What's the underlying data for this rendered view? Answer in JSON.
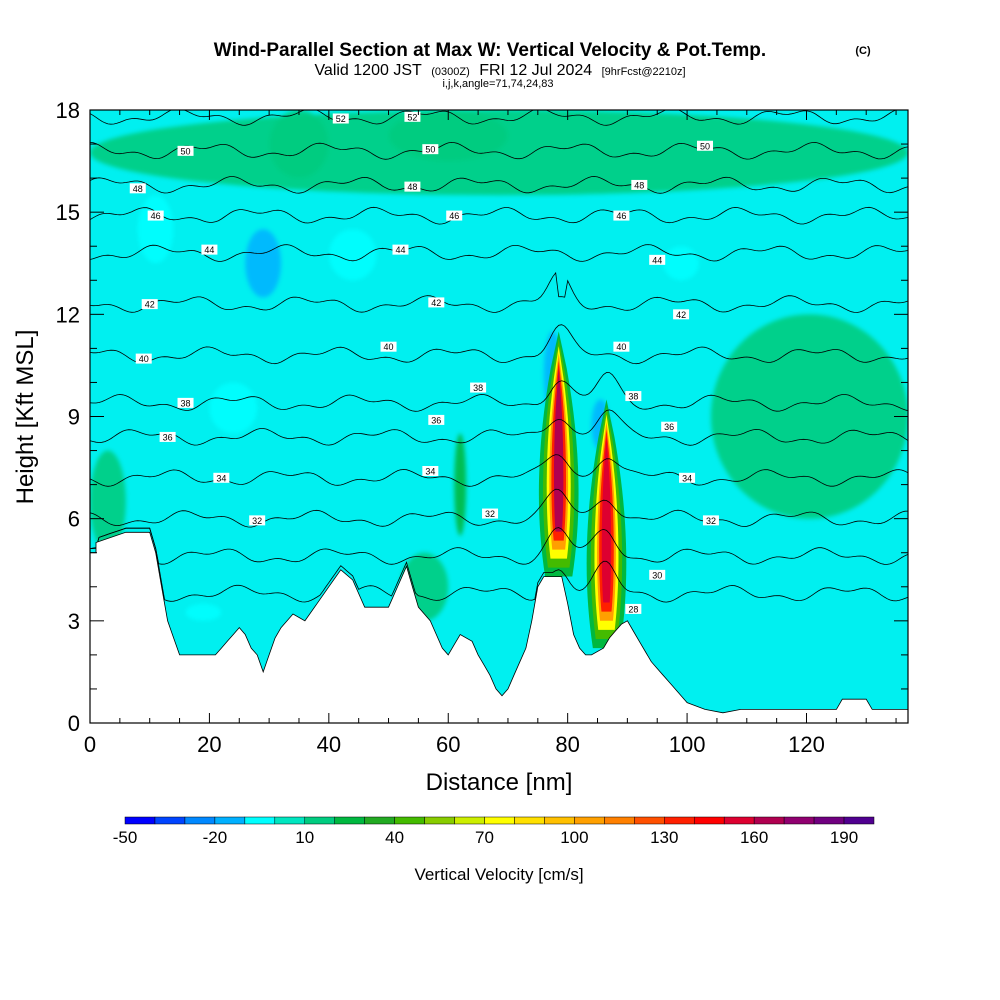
{
  "title": {
    "main": "Wind-Parallel Section at Max W: Vertical Velocity & Pot.Temp.",
    "tag": "(C)",
    "valid_prefix": "Valid 1200 JST",
    "valid_utc": "(0300Z)",
    "valid_date": "FRI 12 Jul 2024",
    "forecast": "[9hrFcst@2210z]",
    "ijk": "i,j,k,angle=71,74,24,83"
  },
  "chart_data": {
    "type": "heatmap",
    "xlabel": "Distance [nm]",
    "ylabel": "Height [Kft MSL]",
    "xlim": [
      0,
      137
    ],
    "ylim": [
      0,
      18
    ],
    "x_ticks": [
      0,
      20,
      40,
      60,
      80,
      100,
      120
    ],
    "y_ticks": [
      0,
      3,
      6,
      9,
      12,
      15,
      18
    ],
    "colorbar": {
      "title": "Vertical Velocity [cm/s]",
      "tick_labels": [
        "-50",
        "-20",
        "10",
        "40",
        "70",
        "100",
        "130",
        "160",
        "190"
      ],
      "levels": [
        -50,
        -40,
        -30,
        -20,
        -10,
        0,
        10,
        20,
        30,
        40,
        50,
        60,
        70,
        80,
        90,
        100,
        110,
        120,
        130,
        140,
        150,
        160,
        170,
        180,
        190,
        200
      ],
      "colors": [
        "#0000ff",
        "#0044ff",
        "#0088ff",
        "#00b0ff",
        "#00ffff",
        "#00e6c0",
        "#00cc80",
        "#00b840",
        "#22aa22",
        "#44bb00",
        "#88cc00",
        "#ccee00",
        "#ffff00",
        "#ffe000",
        "#ffc000",
        "#ffa000",
        "#ff8000",
        "#ff5000",
        "#ff2000",
        "#ff0000",
        "#dd0030",
        "#b00050",
        "#900070",
        "#700080",
        "#500090"
      ]
    },
    "terrain": [
      [
        0,
        5.0
      ],
      [
        1,
        5.0
      ],
      [
        1,
        5.3
      ],
      [
        6,
        5.6
      ],
      [
        10,
        5.6
      ],
      [
        11,
        5.0
      ],
      [
        12,
        4.0
      ],
      [
        13,
        3.0
      ],
      [
        14,
        2.5
      ],
      [
        15,
        2.0
      ],
      [
        16,
        2.0
      ],
      [
        21,
        2.0
      ],
      [
        22,
        2.2
      ],
      [
        23,
        2.4
      ],
      [
        24,
        2.6
      ],
      [
        25,
        2.8
      ],
      [
        26,
        2.6
      ],
      [
        27,
        2.2
      ],
      [
        28,
        2.0
      ],
      [
        29,
        1.5
      ],
      [
        30,
        2.0
      ],
      [
        31,
        2.5
      ],
      [
        32,
        2.8
      ],
      [
        34,
        3.2
      ],
      [
        36,
        3.0
      ],
      [
        38,
        3.5
      ],
      [
        40,
        4.0
      ],
      [
        42,
        4.5
      ],
      [
        44,
        4.2
      ],
      [
        45,
        3.8
      ],
      [
        46,
        3.4
      ],
      [
        50,
        3.4
      ],
      [
        51,
        3.8
      ],
      [
        52,
        4.2
      ],
      [
        53,
        4.6
      ],
      [
        54,
        4.0
      ],
      [
        55,
        3.4
      ],
      [
        57,
        3.0
      ],
      [
        58,
        2.6
      ],
      [
        59,
        2.2
      ],
      [
        60,
        2.0
      ],
      [
        61,
        2.3
      ],
      [
        62,
        2.6
      ],
      [
        64,
        2.4
      ],
      [
        65,
        2.0
      ],
      [
        66,
        1.7
      ],
      [
        67,
        1.4
      ],
      [
        68,
        1.0
      ],
      [
        69,
        0.8
      ],
      [
        70,
        1.0
      ],
      [
        71,
        1.4
      ],
      [
        72,
        1.8
      ],
      [
        73,
        2.2
      ],
      [
        74,
        3.0
      ],
      [
        75,
        4.0
      ],
      [
        76,
        4.3
      ],
      [
        79,
        4.3
      ],
      [
        80,
        3.5
      ],
      [
        81,
        2.6
      ],
      [
        82,
        2.2
      ],
      [
        83,
        2.0
      ],
      [
        84,
        2.0
      ],
      [
        86,
        2.2
      ],
      [
        87,
        2.5
      ],
      [
        88,
        2.7
      ],
      [
        89,
        2.9
      ],
      [
        90,
        3.0
      ],
      [
        91,
        2.7
      ],
      [
        92,
        2.4
      ],
      [
        93,
        2.1
      ],
      [
        94,
        1.8
      ],
      [
        95,
        1.6
      ],
      [
        96,
        1.4
      ],
      [
        97,
        1.2
      ],
      [
        98,
        1.0
      ],
      [
        99,
        0.8
      ],
      [
        100,
        0.6
      ],
      [
        103,
        0.4
      ],
      [
        106,
        0.3
      ],
      [
        109,
        0.4
      ],
      [
        125,
        0.4
      ],
      [
        126,
        0.7
      ],
      [
        130,
        0.7
      ],
      [
        131,
        0.4
      ],
      [
        137,
        0.4
      ]
    ],
    "updrafts": [
      {
        "x": 78.5,
        "base": 4.3,
        "top": 11.5,
        "peak": 165
      },
      {
        "x": 86.5,
        "base": 2.2,
        "top": 9.5,
        "peak": 155
      }
    ],
    "downdraft_regions": [
      {
        "x1": 26,
        "x2": 32,
        "y1": 12.5,
        "y2": 14.5,
        "value": -15
      },
      {
        "x1": 40,
        "x2": 48,
        "y1": 13.0,
        "y2": 14.5,
        "value": -10
      },
      {
        "x1": 8,
        "x2": 14,
        "y1": 13.5,
        "y2": 15.5,
        "value": -10
      },
      {
        "x1": 20,
        "x2": 28,
        "y1": 8.5,
        "y2": 10.0,
        "value": -10
      },
      {
        "x1": 76,
        "x2": 79,
        "y1": 9.0,
        "y2": 11.5,
        "value": -20
      },
      {
        "x1": 84,
        "x2": 87,
        "y1": 8.0,
        "y2": 9.5,
        "value": -15
      },
      {
        "x1": 96,
        "x2": 102,
        "y1": 13.0,
        "y2": 14.0,
        "value": -10
      },
      {
        "x1": 16,
        "x2": 22,
        "y1": 3.0,
        "y2": 3.5,
        "value": -10
      }
    ],
    "upward_regions": [
      {
        "x1": 0,
        "x2": 6,
        "y1": 5.0,
        "y2": 8.0,
        "value": 15
      },
      {
        "x1": 30,
        "x2": 40,
        "y1": 16.0,
        "y2": 18.0,
        "value": 15
      },
      {
        "x1": 50,
        "x2": 70,
        "y1": 16.5,
        "y2": 18.0,
        "value": 15
      },
      {
        "x1": 104,
        "x2": 137,
        "y1": 6.0,
        "y2": 12.0,
        "value": 15
      },
      {
        "x1": 61,
        "x2": 63,
        "y1": 5.5,
        "y2": 8.5,
        "value": 25
      },
      {
        "x1": 0,
        "x2": 137,
        "y1": 15.5,
        "y2": 18.0,
        "value": 12
      },
      {
        "x1": 52,
        "x2": 60,
        "y1": 3.0,
        "y2": 5.0,
        "value": 12
      }
    ],
    "theta_contours": [
      {
        "level": 28,
        "label": "28",
        "ref": [
          [
            0,
            3.8
          ],
          [
            137,
            3.8
          ]
        ],
        "label_x": 91,
        "label_y": 3.35
      },
      {
        "level": 30,
        "label": "30",
        "ref": [
          [
            0,
            4.9
          ],
          [
            137,
            4.9
          ]
        ],
        "label_x": 95,
        "label_y": 4.35
      },
      {
        "level": 32,
        "label": "32",
        "ref": [
          [
            0,
            6.0
          ],
          [
            137,
            6.0
          ]
        ],
        "label_x": 28,
        "label_y": 5.95
      },
      {
        "level": 34,
        "label": "34",
        "ref": [
          [
            0,
            7.2
          ],
          [
            137,
            7.2
          ]
        ],
        "label_x": 22,
        "label_y": 7.2
      },
      {
        "level": 36,
        "label": "36",
        "ref": [
          [
            0,
            8.4
          ],
          [
            137,
            8.4
          ]
        ],
        "label_x": 13,
        "label_y": 8.4
      },
      {
        "level": 38,
        "label": "38",
        "ref": [
          [
            0,
            9.4
          ],
          [
            137,
            9.4
          ]
        ],
        "label_x": 16,
        "label_y": 9.4
      },
      {
        "level": 40,
        "label": "40",
        "ref": [
          [
            0,
            10.8
          ],
          [
            137,
            10.8
          ]
        ],
        "label_x": 9,
        "label_y": 10.7
      },
      {
        "level": 42,
        "label": "42",
        "ref": [
          [
            0,
            12.3
          ],
          [
            137,
            12.3
          ]
        ],
        "label_x": 10,
        "label_y": 12.3
      },
      {
        "level": 44,
        "label": "44",
        "ref": [
          [
            0,
            13.8
          ],
          [
            137,
            13.8
          ]
        ],
        "label_x": 20,
        "label_y": 13.9
      },
      {
        "level": 46,
        "label": "46",
        "ref": [
          [
            0,
            14.9
          ],
          [
            137,
            14.9
          ]
        ],
        "label_x": 11,
        "label_y": 14.9
      },
      {
        "level": 48,
        "label": "48",
        "ref": [
          [
            0,
            15.8
          ],
          [
            137,
            15.8
          ]
        ],
        "label_x": 8,
        "label_y": 15.7
      },
      {
        "level": 50,
        "label": "50",
        "ref": [
          [
            0,
            16.8
          ],
          [
            137,
            16.8
          ]
        ],
        "label_x": 16,
        "label_y": 16.8
      },
      {
        "level": 52,
        "label": "52",
        "ref": [
          [
            0,
            17.8
          ],
          [
            137,
            17.8
          ]
        ],
        "label_x": 42,
        "label_y": 17.75
      }
    ],
    "extra_theta_labels": [
      {
        "label": "52",
        "x": 54,
        "y": 17.8
      },
      {
        "label": "50",
        "x": 57,
        "y": 16.85
      },
      {
        "label": "50",
        "x": 103,
        "y": 16.95
      },
      {
        "label": "48",
        "x": 54,
        "y": 15.75
      },
      {
        "label": "48",
        "x": 92,
        "y": 15.8
      },
      {
        "label": "46",
        "x": 61,
        "y": 14.9
      },
      {
        "label": "46",
        "x": 89,
        "y": 14.9
      },
      {
        "label": "44",
        "x": 52,
        "y": 13.9
      },
      {
        "label": "44",
        "x": 95,
        "y": 13.6
      },
      {
        "label": "42",
        "x": 58,
        "y": 12.35
      },
      {
        "label": "42",
        "x": 99,
        "y": 12.0
      },
      {
        "label": "40",
        "x": 50,
        "y": 11.05
      },
      {
        "label": "40",
        "x": 89,
        "y": 11.05
      },
      {
        "label": "38",
        "x": 65,
        "y": 9.85
      },
      {
        "label": "38",
        "x": 91,
        "y": 9.6
      },
      {
        "label": "36",
        "x": 58,
        "y": 8.9
      },
      {
        "label": "36",
        "x": 97,
        "y": 8.7
      },
      {
        "label": "34",
        "x": 57,
        "y": 7.4
      },
      {
        "label": "34",
        "x": 100,
        "y": 7.2
      },
      {
        "label": "32",
        "x": 67,
        "y": 6.15
      },
      {
        "label": "32",
        "x": 104,
        "y": 5.95
      }
    ]
  }
}
